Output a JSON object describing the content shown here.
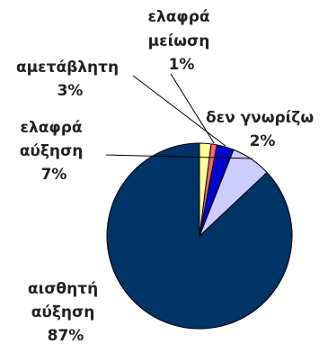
{
  "chart_data": {
    "type": "pie",
    "title": "",
    "start_angle_deg": 0,
    "direction": "clockwise",
    "slices": [
      {
        "label": [
          "αισθητή",
          "αύξηση"
        ],
        "value": 87,
        "value_label": "87%",
        "color": "#003366"
      },
      {
        "label": [
          "ελαφρά",
          "αύξηση"
        ],
        "value": 7,
        "value_label": "7%",
        "color": "#CCCCFF"
      },
      {
        "label": [
          "αμετάβλητη"
        ],
        "value": 3,
        "value_label": "3%",
        "color": "#0000CC"
      },
      {
        "label": [
          "ελαφρά",
          "μείωση"
        ],
        "value": 1,
        "value_label": "1%",
        "color": "#FF6666"
      },
      {
        "label": [
          "δεν γνωρίζω"
        ],
        "value": 2,
        "value_label": "2%",
        "color": "#FFFF99"
      }
    ],
    "legend": "none"
  }
}
